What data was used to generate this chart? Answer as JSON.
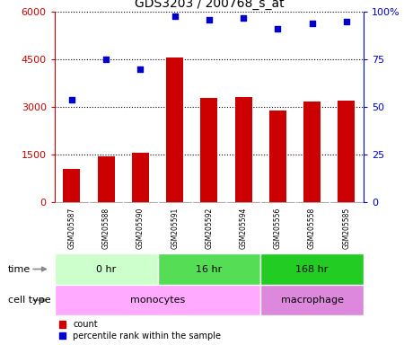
{
  "title": "GDS3203 / 200768_s_at",
  "samples": [
    "GSM205587",
    "GSM205588",
    "GSM205590",
    "GSM205591",
    "GSM205592",
    "GSM205594",
    "GSM205556",
    "GSM205558",
    "GSM205585"
  ],
  "counts": [
    1050,
    1430,
    1560,
    4550,
    3280,
    3300,
    2900,
    3180,
    3200
  ],
  "percentiles": [
    54,
    75,
    70,
    98,
    96,
    97,
    91,
    94,
    95
  ],
  "bar_color": "#cc0000",
  "dot_color": "#0000cc",
  "ylim_left": [
    0,
    6000
  ],
  "ylim_right": [
    0,
    100
  ],
  "yticks_left": [
    0,
    1500,
    3000,
    4500,
    6000
  ],
  "ytick_labels_left": [
    "0",
    "1500",
    "3000",
    "4500",
    "6000"
  ],
  "yticks_right": [
    0,
    25,
    50,
    75,
    100
  ],
  "ytick_labels_right": [
    "0",
    "25",
    "50",
    "75",
    "100%"
  ],
  "time_groups": [
    {
      "label": "0 hr",
      "start": 0,
      "end": 3,
      "color": "#ccffcc"
    },
    {
      "label": "16 hr",
      "start": 3,
      "end": 6,
      "color": "#55dd55"
    },
    {
      "label": "168 hr",
      "start": 6,
      "end": 9,
      "color": "#22cc22"
    }
  ],
  "cell_groups": [
    {
      "label": "monocytes",
      "start": 0,
      "end": 6,
      "color": "#ffaaff"
    },
    {
      "label": "macrophage",
      "start": 6,
      "end": 9,
      "color": "#dd88dd"
    }
  ],
  "legend_count_label": "count",
  "legend_pct_label": "percentile rank within the sample",
  "time_label": "time",
  "cell_label": "cell type",
  "sample_bg_color": "#cccccc",
  "bar_width": 0.5,
  "fig_bg": "#ffffff"
}
